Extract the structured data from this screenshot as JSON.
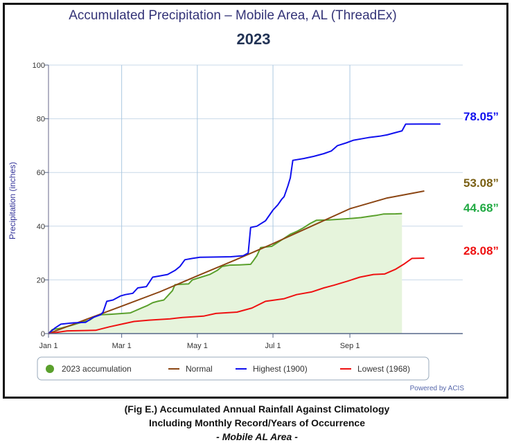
{
  "chart_data": {
    "type": "line",
    "title": "Accumulated Precipitation – Mobile Area, AL (ThreadEx)",
    "subtitle": "2023",
    "ylabel": "Precipitation (inches)",
    "xlabel": "",
    "ylim": [
      0,
      100
    ],
    "yticks": [
      0,
      20,
      40,
      60,
      80,
      100
    ],
    "x_domain_days": [
      0,
      334
    ],
    "xticks": [
      {
        "day": 0,
        "label": "Jan 1"
      },
      {
        "day": 59,
        "label": "Mar 1"
      },
      {
        "day": 120,
        "label": "May 1"
      },
      {
        "day": 181,
        "label": "Jul 1"
      },
      {
        "day": 243,
        "label": "Sep 1"
      }
    ],
    "grid": true,
    "legend_position": "bottom",
    "series": [
      {
        "name": "2023 accumulation",
        "color": "#5aa02c",
        "fill": "#e6f4dc",
        "marker": "circle",
        "points": [
          [
            0,
            0
          ],
          [
            3,
            1.5
          ],
          [
            10,
            2
          ],
          [
            18,
            3
          ],
          [
            25,
            4
          ],
          [
            33,
            5
          ],
          [
            38,
            6.5
          ],
          [
            42,
            7
          ],
          [
            50,
            7.2
          ],
          [
            60,
            7.5
          ],
          [
            66,
            7.7
          ],
          [
            70,
            8.5
          ],
          [
            75,
            9.5
          ],
          [
            80,
            10.5
          ],
          [
            84,
            11.5
          ],
          [
            88,
            12
          ],
          [
            93,
            12.5
          ],
          [
            96,
            14
          ],
          [
            100,
            16
          ],
          [
            102,
            18.2
          ],
          [
            108,
            18.4
          ],
          [
            113,
            18.5
          ],
          [
            116,
            20
          ],
          [
            123,
            21
          ],
          [
            130,
            22
          ],
          [
            136,
            23.5
          ],
          [
            140,
            25
          ],
          [
            146,
            25.5
          ],
          [
            154,
            25.6
          ],
          [
            163,
            25.8
          ],
          [
            165,
            27
          ],
          [
            168,
            29
          ],
          [
            171,
            32
          ],
          [
            180,
            32.5
          ],
          [
            185,
            34
          ],
          [
            190,
            35.5
          ],
          [
            195,
            37
          ],
          [
            200,
            38
          ],
          [
            206,
            39.5
          ],
          [
            211,
            41
          ],
          [
            216,
            42.2
          ],
          [
            225,
            42.3
          ],
          [
            235,
            42.6
          ],
          [
            245,
            42.9
          ],
          [
            252,
            43.2
          ],
          [
            258,
            43.6
          ],
          [
            264,
            44
          ],
          [
            270,
            44.5
          ],
          [
            280,
            44.6
          ],
          [
            285,
            44.68
          ]
        ]
      },
      {
        "name": "Normal",
        "color": "#8b4513",
        "points": [
          [
            0,
            0
          ],
          [
            30,
            5.2
          ],
          [
            59,
            10.2
          ],
          [
            90,
            15.6
          ],
          [
            120,
            21.5
          ],
          [
            151,
            27.5
          ],
          [
            181,
            33.5
          ],
          [
            212,
            40
          ],
          [
            243,
            46.5
          ],
          [
            273,
            50.5
          ],
          [
            303,
            53.08
          ]
        ]
      },
      {
        "name": "Highest (1900)",
        "color": "#1010ee",
        "points": [
          [
            0,
            0
          ],
          [
            5,
            2
          ],
          [
            10,
            3.5
          ],
          [
            20,
            4
          ],
          [
            30,
            4.2
          ],
          [
            36,
            6
          ],
          [
            42,
            7
          ],
          [
            44,
            8
          ],
          [
            47,
            12
          ],
          [
            52,
            12.5
          ],
          [
            58,
            14
          ],
          [
            62,
            14.5
          ],
          [
            68,
            15
          ],
          [
            72,
            17
          ],
          [
            79,
            17.5
          ],
          [
            84,
            21
          ],
          [
            90,
            21.5
          ],
          [
            96,
            22
          ],
          [
            102,
            23.5
          ],
          [
            106,
            25
          ],
          [
            110,
            27.5
          ],
          [
            116,
            28
          ],
          [
            122,
            28.4
          ],
          [
            135,
            28.5
          ],
          [
            147,
            28.6
          ],
          [
            157,
            29
          ],
          [
            161,
            30
          ],
          [
            163,
            39.5
          ],
          [
            168,
            40
          ],
          [
            175,
            42
          ],
          [
            181,
            46
          ],
          [
            185,
            48
          ],
          [
            188,
            50
          ],
          [
            190,
            51
          ],
          [
            193,
            55
          ],
          [
            195,
            58
          ],
          [
            197,
            64.5
          ],
          [
            206,
            65.2
          ],
          [
            214,
            66
          ],
          [
            222,
            67
          ],
          [
            228,
            68
          ],
          [
            233,
            70
          ],
          [
            240,
            71
          ],
          [
            246,
            72
          ],
          [
            252,
            72.5
          ],
          [
            258,
            73
          ],
          [
            267,
            73.5
          ],
          [
            273,
            74
          ],
          [
            281,
            75
          ],
          [
            285,
            75.5
          ],
          [
            288,
            78
          ],
          [
            300,
            78.05
          ],
          [
            316,
            78.05
          ]
        ]
      },
      {
        "name": "Lowest (1968)",
        "color": "#ee1111",
        "points": [
          [
            0,
            0
          ],
          [
            15,
            1
          ],
          [
            38,
            1.2
          ],
          [
            49,
            2.5
          ],
          [
            59,
            3.5
          ],
          [
            69,
            4.5
          ],
          [
            81,
            5
          ],
          [
            98,
            5.5
          ],
          [
            108,
            6
          ],
          [
            125,
            6.5
          ],
          [
            135,
            7.5
          ],
          [
            152,
            8
          ],
          [
            164,
            9.5
          ],
          [
            175,
            12
          ],
          [
            190,
            13
          ],
          [
            200,
            14.5
          ],
          [
            212,
            15.5
          ],
          [
            222,
            17
          ],
          [
            230,
            18
          ],
          [
            241,
            19.5
          ],
          [
            251,
            21
          ],
          [
            262,
            22
          ],
          [
            271,
            22.2
          ],
          [
            280,
            24
          ],
          [
            287,
            26
          ],
          [
            293,
            28
          ],
          [
            303,
            28.08
          ]
        ]
      }
    ],
    "end_labels": [
      {
        "text": "78.05”",
        "value": 78.05,
        "color": "#1010ee"
      },
      {
        "text": "53.08”",
        "value": 53.08,
        "color": "#7a6014"
      },
      {
        "text": "44.68”",
        "value": 44.68,
        "color": "#22aa44"
      },
      {
        "text": "28.08”",
        "value": 28.08,
        "color": "#ee1111"
      }
    ],
    "credit": "Powered by ACIS"
  },
  "caption": {
    "line1": "(Fig E.) Accumulated Annual Rainfall Against  Climatology",
    "line2": "Including Monthly Record/Years of Occurrence",
    "line3": "- Mobile AL Area -"
  }
}
